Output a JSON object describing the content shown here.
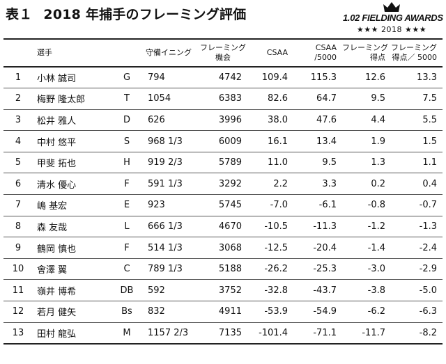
{
  "title": {
    "table_no": "表１",
    "text": "2018 年捕手のフレーミング評価"
  },
  "logo": {
    "brand": "1.02 FIELDING AWARDS",
    "year": "★★★ 2018 ★★★"
  },
  "headers": {
    "player": "選手",
    "innings": "守備イニング",
    "framing_chances": [
      "フレーミング",
      "機会"
    ],
    "csaa": "CSAA",
    "csaa_5000": [
      "CSAA",
      "/5000"
    ],
    "framing_runs": [
      "フレーミング",
      "得点"
    ],
    "framing_runs_5000": [
      "フレーミング",
      "得点／ 5000"
    ]
  },
  "rows": [
    {
      "rank": "1",
      "name": "小林 誠司",
      "team": "G",
      "innings": "794",
      "chances": "4742",
      "csaa": "109.4",
      "csaa5000": "115.3",
      "runs": "12.6",
      "runs5000": "13.3"
    },
    {
      "rank": "2",
      "name": "梅野 隆太郎",
      "team": "T",
      "innings": "1054",
      "chances": "6383",
      "csaa": "82.6",
      "csaa5000": "64.7",
      "runs": "9.5",
      "runs5000": "7.5"
    },
    {
      "rank": "3",
      "name": "松井 雅人",
      "team": "D",
      "innings": "626",
      "chances": "3996",
      "csaa": "38.0",
      "csaa5000": "47.6",
      "runs": "4.4",
      "runs5000": "5.5"
    },
    {
      "rank": "4",
      "name": "中村 悠平",
      "team": "S",
      "innings": "968 1/3",
      "chances": "6009",
      "csaa": "16.1",
      "csaa5000": "13.4",
      "runs": "1.9",
      "runs5000": "1.5"
    },
    {
      "rank": "5",
      "name": "甲斐 拓也",
      "team": "H",
      "innings": "919 2/3",
      "chances": "5789",
      "csaa": "11.0",
      "csaa5000": "9.5",
      "runs": "1.3",
      "runs5000": "1.1"
    },
    {
      "rank": "6",
      "name": "清水 優心",
      "team": "F",
      "innings": "591 1/3",
      "chances": "3292",
      "csaa": "2.2",
      "csaa5000": "3.3",
      "runs": "0.2",
      "runs5000": "0.4"
    },
    {
      "rank": "7",
      "name": "嶋 基宏",
      "team": "E",
      "innings": "923",
      "chances": "5745",
      "csaa": "-7.0",
      "csaa5000": "-6.1",
      "runs": "-0.8",
      "runs5000": "-0.7"
    },
    {
      "rank": "8",
      "name": "森 友哉",
      "team": "L",
      "innings": "666 1/3",
      "chances": "4670",
      "csaa": "-10.5",
      "csaa5000": "-11.3",
      "runs": "-1.2",
      "runs5000": "-1.3"
    },
    {
      "rank": "9",
      "name": "鶴岡 慎也",
      "team": "F",
      "innings": "514 1/3",
      "chances": "3068",
      "csaa": "-12.5",
      "csaa5000": "-20.4",
      "runs": "-1.4",
      "runs5000": "-2.4"
    },
    {
      "rank": "10",
      "name": "會澤 翼",
      "team": "C",
      "innings": "789 1/3",
      "chances": "5188",
      "csaa": "-26.2",
      "csaa5000": "-25.3",
      "runs": "-3.0",
      "runs5000": "-2.9"
    },
    {
      "rank": "11",
      "name": "嶺井 博希",
      "team": "DB",
      "innings": "592",
      "chances": "3752",
      "csaa": "-32.8",
      "csaa5000": "-43.7",
      "runs": "-3.8",
      "runs5000": "-5.0"
    },
    {
      "rank": "12",
      "name": "若月 健矢",
      "team": "Bs",
      "innings": "832",
      "chances": "4911",
      "csaa": "-53.9",
      "csaa5000": "-54.9",
      "runs": "-6.2",
      "runs5000": "-6.3"
    },
    {
      "rank": "13",
      "name": "田村 龍弘",
      "team": "M",
      "innings": "1157 2/3",
      "chances": "7135",
      "csaa": "-101.4",
      "csaa5000": "-71.1",
      "runs": "-11.7",
      "runs5000": "-8.2"
    }
  ]
}
